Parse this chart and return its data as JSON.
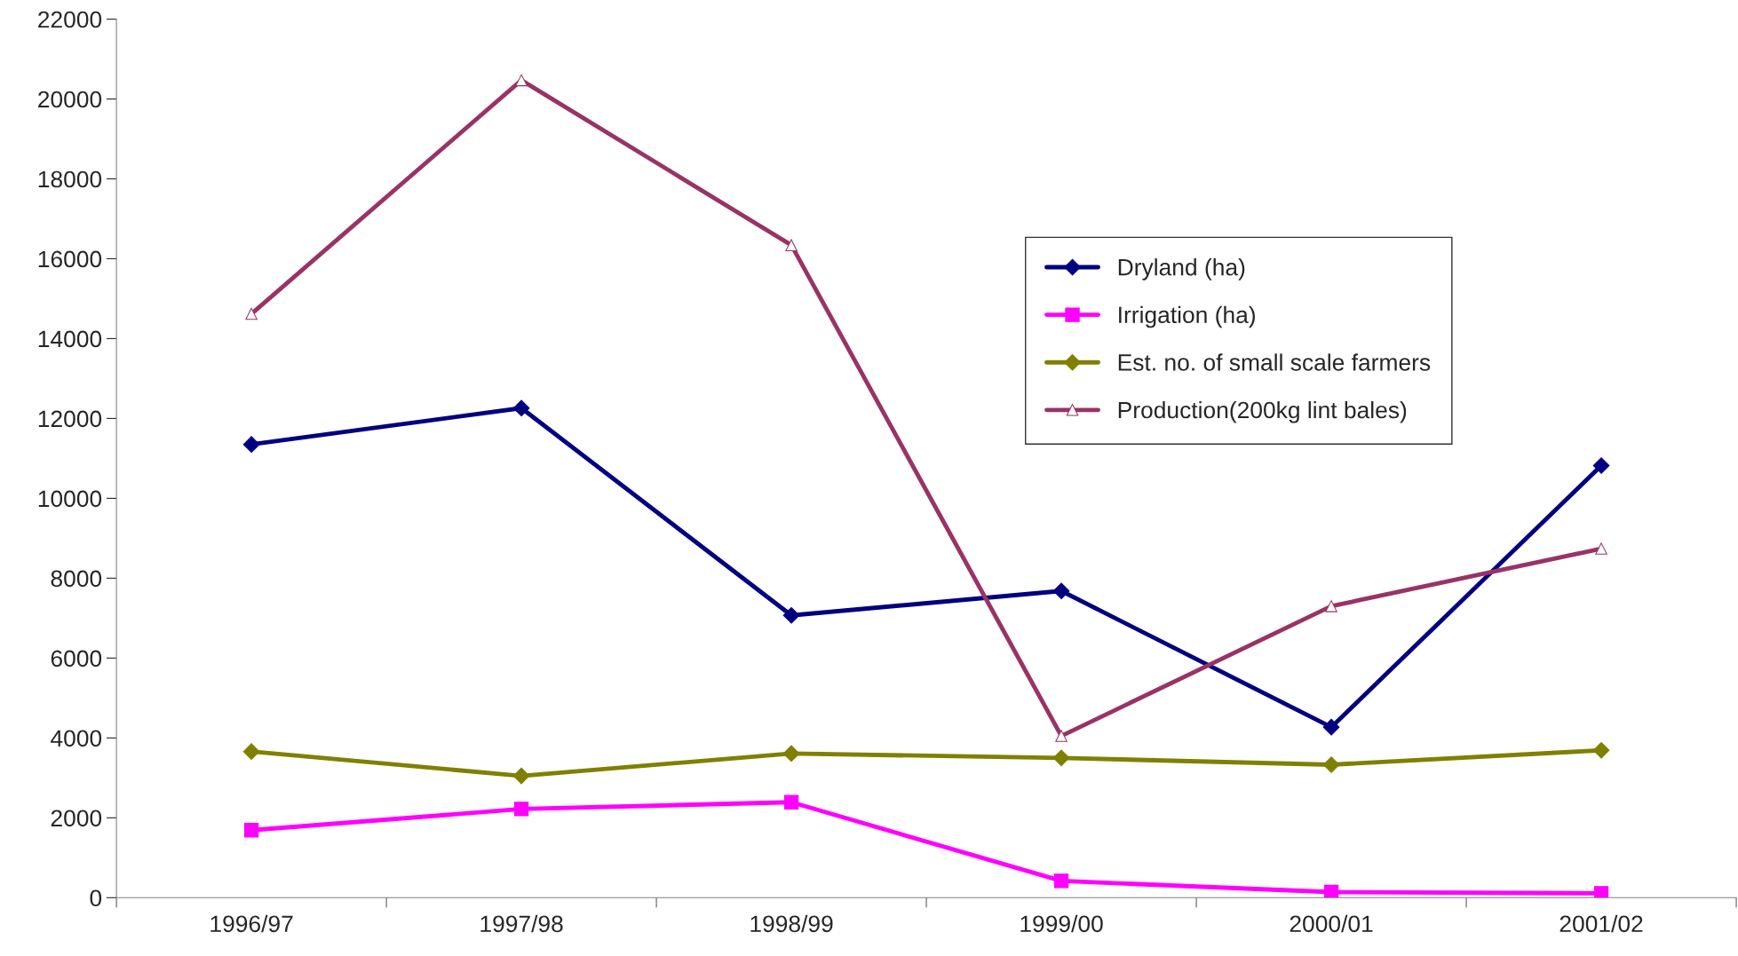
{
  "chart_data": {
    "type": "line",
    "categories": [
      "1996/97",
      "1997/98",
      "1998/99",
      "1999/00",
      "2000/01",
      "2001/02"
    ],
    "ylim": [
      0,
      22000
    ],
    "yticks": [
      0,
      2000,
      4000,
      6000,
      8000,
      10000,
      12000,
      14000,
      16000,
      18000,
      20000,
      22000
    ],
    "grid": false,
    "legend": "right",
    "series": [
      {
        "name": "Dryland (ha)",
        "color": "#000080",
        "marker": "diamond",
        "values": [
          11350,
          12260,
          7070,
          7680,
          4270,
          10820
        ]
      },
      {
        "name": "Irrigation (ha)",
        "color": "#ff00ff",
        "marker": "square",
        "values": [
          1690,
          2220,
          2390,
          420,
          140,
          110
        ]
      },
      {
        "name": "Est. no. of small scale farmers",
        "color": "#808000",
        "marker": "diamond",
        "values": [
          3660,
          3050,
          3610,
          3500,
          3330,
          3690
        ]
      },
      {
        "name": "Production(200kg lint bales)",
        "color": "#993366",
        "marker": "triangle",
        "values": [
          14620,
          20470,
          16340,
          4050,
          7300,
          8740
        ]
      }
    ]
  }
}
